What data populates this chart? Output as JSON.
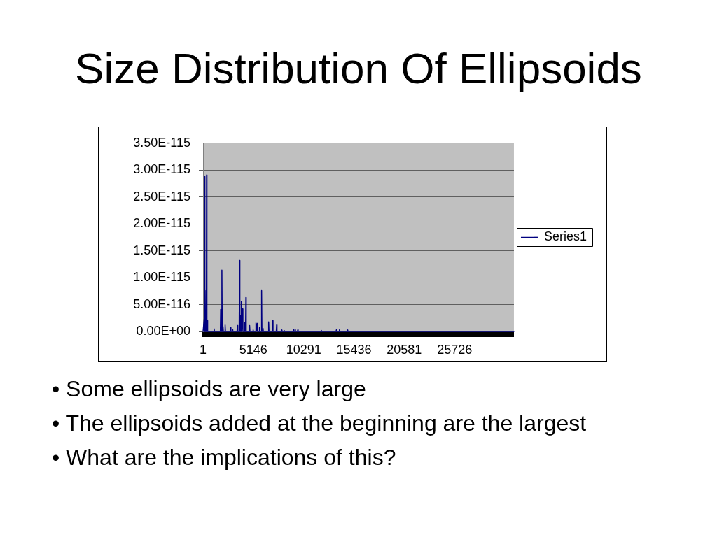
{
  "chart_data": {
    "type": "line",
    "title": "Size Distribution Of Ellipsoids",
    "annotations": [
      "• Some ellipsoids are very large",
      "• The ellipsoids added at the beginning are the largest",
      "• What are the implications of this?"
    ],
    "x": [
      1,
      124,
      145,
      167,
      203,
      275,
      311,
      336,
      362,
      398,
      434,
      470,
      1098,
      1134,
      1170,
      1769,
      1805,
      1841,
      1892,
      1928,
      1964,
      2007,
      2043,
      2079,
      2224,
      2260,
      2296,
      2779,
      2815,
      2851,
      2974,
      3010,
      3046,
      3479,
      3515,
      3551,
      3695,
      3731,
      3767,
      3803,
      3839,
      3883,
      3919,
      3955,
      4006,
      4042,
      4078,
      4222,
      4258,
      4294,
      4345,
      4381,
      4417,
      4728,
      4764,
      4800,
      5088,
      5124,
      5160,
      5377,
      5413,
      5449,
      5498,
      5534,
      5570,
      5738,
      5774,
      5810,
      5954,
      5990,
      6026,
      6099,
      6135,
      6171,
      6676,
      6712,
      6748,
      7087,
      7123,
      7159,
      7491,
      7527,
      7563,
      8025,
      8061,
      8097,
      8264,
      8300,
      8336,
      9223,
      9259,
      9295,
      9396,
      9432,
      9468,
      9656,
      9692,
      9728,
      12066,
      12102,
      12138,
      13603,
      13639,
      13675,
      13913,
      13949,
      13985,
      14757,
      14793,
      14829,
      31800
    ],
    "series": [
      {
        "name": "Series1",
        "color": "#000080",
        "values": [
          0,
          2.4e-116,
          0,
          2.88e-115,
          0,
          0,
          7.6e-116,
          0,
          2.91e-115,
          0,
          2e-116,
          0,
          0,
          5e-117,
          0,
          0,
          4.1e-116,
          0,
          0,
          1.14e-115,
          0,
          0,
          9e-117,
          0,
          0,
          1.2e-116,
          0,
          0,
          7e-117,
          0,
          0,
          3e-117,
          0,
          0,
          1.1e-116,
          0,
          0,
          1.32e-115,
          0,
          2.9e-116,
          0,
          0,
          5.6e-116,
          0,
          0,
          4.2e-116,
          0,
          0,
          1.6e-116,
          0,
          0,
          6.3e-116,
          0,
          0,
          1.1e-116,
          0,
          0,
          3e-117,
          0,
          0,
          1.6e-116,
          0,
          0,
          1.5e-116,
          0,
          0,
          7e-117,
          0,
          0,
          7.6e-116,
          0,
          0,
          6e-117,
          0,
          0,
          1.8e-116,
          0,
          0,
          2e-116,
          0,
          0,
          1.2e-116,
          0,
          0,
          3e-117,
          0,
          0,
          2e-117,
          0,
          0,
          3e-117,
          0,
          0,
          4e-117,
          0,
          0,
          3e-117,
          0,
          0,
          2e-117,
          0,
          0,
          3e-117,
          0,
          0,
          3e-117,
          0,
          0,
          3e-117,
          0,
          0
        ]
      }
    ],
    "xlim": [
      1,
      31800
    ],
    "xticks": [
      1,
      5146,
      10291,
      15436,
      20581,
      25726
    ],
    "ylim": [
      0,
      3.5e-115
    ],
    "yticks": [
      {
        "value": 0,
        "label": "0.00E+00"
      },
      {
        "value": 5e-116,
        "label": "5.00E-116"
      },
      {
        "value": 1e-115,
        "label": "1.00E-115"
      },
      {
        "value": 1.5e-115,
        "label": "1.50E-115"
      },
      {
        "value": 2e-115,
        "label": "2.00E-115"
      },
      {
        "value": 2.5e-115,
        "label": "2.50E-115"
      },
      {
        "value": 3e-115,
        "label": "3.00E-115"
      },
      {
        "value": 3.5e-115,
        "label": "3.50E-115"
      }
    ],
    "grid": "y",
    "legend": "right"
  }
}
